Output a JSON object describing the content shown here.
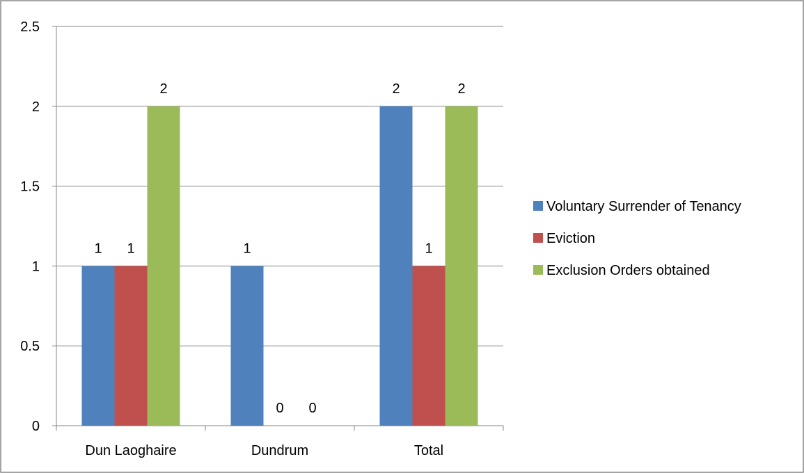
{
  "chart_data": {
    "type": "bar",
    "title": "",
    "xlabel": "",
    "ylabel": "",
    "categories": [
      "Dun Laoghaire",
      "Dundrum",
      "Total"
    ],
    "series": [
      {
        "name": "Voluntary Surrender of Tenancy",
        "color": "#4F81BD",
        "values": [
          1,
          1,
          2
        ],
        "data_labels": [
          "1",
          "1",
          "2"
        ]
      },
      {
        "name": "Eviction",
        "color": "#C0504D",
        "values": [
          1,
          0,
          1
        ],
        "data_labels": [
          "1",
          "0",
          "1"
        ]
      },
      {
        "name": "Exclusion Orders obtained",
        "color": "#9BBB59",
        "values": [
          2,
          0,
          2
        ],
        "data_labels": [
          "2",
          "0",
          "2"
        ]
      }
    ],
    "ylim": [
      0,
      2.5
    ],
    "yticks": [
      0,
      0.5,
      1,
      1.5,
      2,
      2.5
    ],
    "ytick_labels": [
      "0",
      "0.5",
      "1",
      "1.5",
      "2",
      "2.5"
    ],
    "grid": true,
    "legend_position": "right"
  }
}
